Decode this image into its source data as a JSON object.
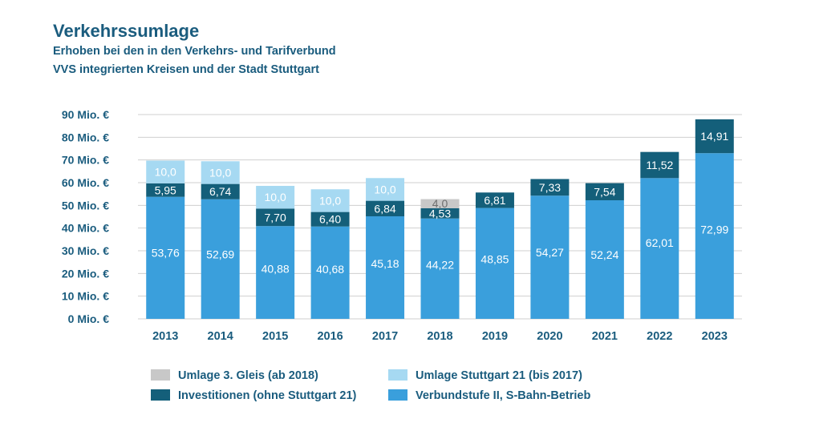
{
  "title": "Verkehrssumlage",
  "subtitle_lines": [
    "Erhoben bei den in den Verkehrs- und Tarifverbund",
    "VVS integrierten Kreisen und der Stadt Stuttgart"
  ],
  "colors": {
    "verbundstufe": "#3a9fdc",
    "investitionen": "#145f7a",
    "stuttgart21": "#a6d9f2",
    "gleis3": "#c8c8c8",
    "text_dark": "#1a5c7e",
    "gridline": "#cfcfcf"
  },
  "chart_data": {
    "type": "bar",
    "stacked": true,
    "title": "Verkehrssumlage",
    "categories": [
      "2013",
      "2014",
      "2015",
      "2016",
      "2017",
      "2018",
      "2019",
      "2020",
      "2021",
      "2022",
      "2023"
    ],
    "ylim": [
      0,
      90
    ],
    "yticks": [
      0,
      10,
      20,
      30,
      40,
      50,
      60,
      70,
      80,
      90
    ],
    "ytick_labels": [
      "0 Mio. €",
      "10 Mio. €",
      "20 Mio. €",
      "30 Mio. €",
      "40 Mio. €",
      "50 Mio. €",
      "60 Mio. €",
      "70 Mio. €",
      "80 Mio. €",
      "90 Mio. €"
    ],
    "grid": true,
    "legend_position": "bottom",
    "series": [
      {
        "name": "Verbundstufe II, S-Bahn-Betrieb",
        "color_key": "verbundstufe",
        "values": [
          53.76,
          52.69,
          40.88,
          40.68,
          45.18,
          44.22,
          48.85,
          54.27,
          52.24,
          62.01,
          72.99
        ],
        "labels": [
          "53,76",
          "52,69",
          "40,88",
          "40,68",
          "45,18",
          "44,22",
          "48,85",
          "54,27",
          "52,24",
          "62,01",
          "72,99"
        ]
      },
      {
        "name": "Investitionen (ohne Stuttgart 21)",
        "color_key": "investitionen",
        "values": [
          5.95,
          6.74,
          7.7,
          6.4,
          6.84,
          4.53,
          6.81,
          7.33,
          7.54,
          11.52,
          14.91
        ],
        "labels": [
          "5,95",
          "6,74",
          "7,70",
          "6,40",
          "6,84",
          "4,53",
          "6,81",
          "7,33",
          "7,54",
          "11,52",
          "14,91"
        ]
      },
      {
        "name": "Umlage 3. Gleis (ab 2018)",
        "color_key": "gleis3",
        "values": [
          null,
          null,
          null,
          null,
          null,
          4.0,
          null,
          null,
          null,
          null,
          null
        ],
        "labels": [
          null,
          null,
          null,
          null,
          null,
          "4,0",
          null,
          null,
          null,
          null,
          null
        ]
      },
      {
        "name": "Umlage Stuttgart 21 (bis 2017)",
        "color_key": "stuttgart21",
        "values": [
          10.0,
          10.0,
          10.0,
          10.0,
          10.0,
          null,
          null,
          null,
          null,
          null,
          null
        ],
        "labels": [
          "10,0",
          "10,0",
          "10,0",
          "10,0",
          "10,0",
          null,
          null,
          null,
          null,
          null,
          null
        ]
      }
    ],
    "legend": [
      {
        "label": "Umlage 3. Gleis (ab 2018)",
        "color_key": "gleis3"
      },
      {
        "label": "Umlage Stuttgart 21 (bis 2017)",
        "color_key": "stuttgart21"
      },
      {
        "label": "Investitionen (ohne Stuttgart 21)",
        "color_key": "investitionen"
      },
      {
        "label": "Verbundstufe II, S-Bahn-Betrieb",
        "color_key": "verbundstufe"
      }
    ]
  }
}
